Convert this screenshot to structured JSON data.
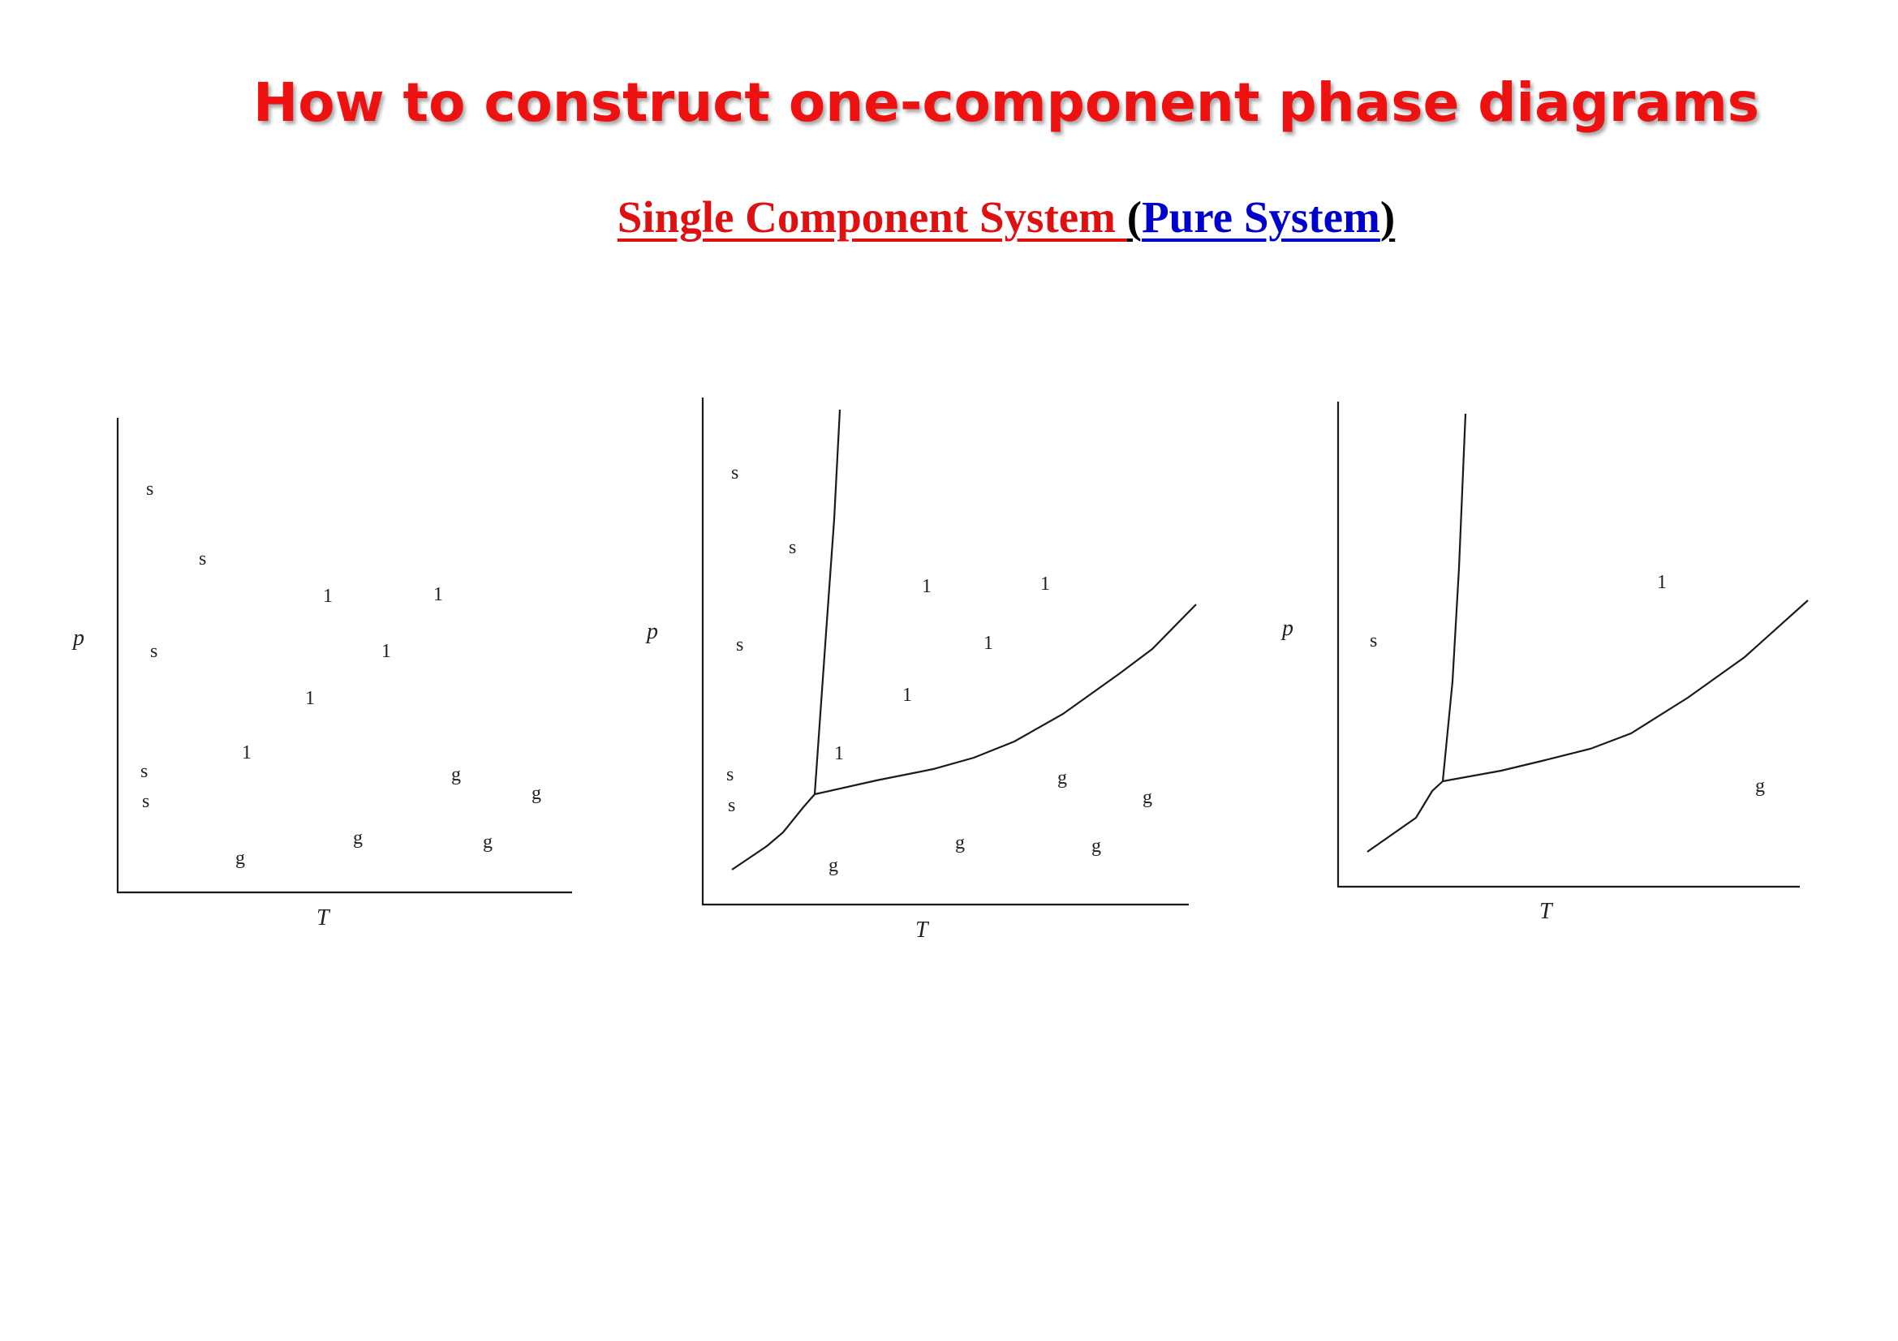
{
  "title": "How to construct one-component phase diagrams",
  "subtitle": {
    "part1": "Single Component System ",
    "open_paren": "(",
    "part2": "Pure System",
    "close_paren": ")"
  },
  "diagrams": [
    {
      "y_label": "p",
      "x_label": "T",
      "region_labels": [
        "s",
        "s",
        "s",
        "s",
        "s",
        "1",
        "1",
        "1",
        "1",
        "1",
        "g",
        "g",
        "g",
        "g",
        "g"
      ]
    },
    {
      "y_label": "p",
      "x_label": "T",
      "region_labels": [
        "s",
        "s",
        "s",
        "s",
        "s",
        "1",
        "1",
        "1",
        "1",
        "1",
        "g",
        "g",
        "g",
        "g",
        "g"
      ]
    },
    {
      "y_label": "p",
      "x_label": "T",
      "region_labels": [
        "s",
        "1",
        "g"
      ]
    }
  ],
  "colors": {
    "title": "#ee1111",
    "subtitle_red": "#dd1111",
    "subtitle_blue": "#0000cc"
  }
}
